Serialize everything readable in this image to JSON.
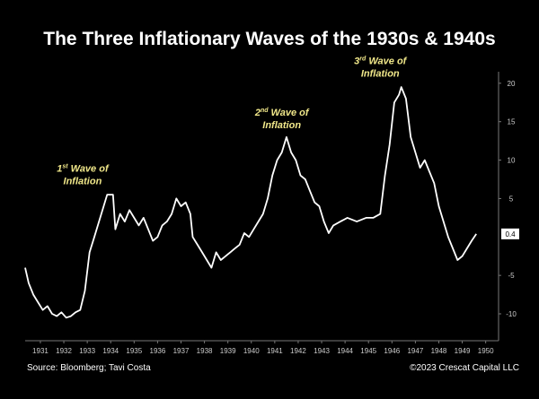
{
  "chart_data": {
    "type": "line",
    "title": "The Three Inflationary Waves of the 1930s & 1940s",
    "source": "Source: Bloomberg; Tavi Costa",
    "credit": "©2023 Crescat Capital LLC",
    "color": "#ffffff",
    "xlim": [
      1930.85,
      1951.05
    ],
    "ylim": [
      -13.5,
      21.5
    ],
    "yticks": [
      -10,
      -5,
      5,
      10,
      15,
      20
    ],
    "xticks": [
      {
        "value": 1931.5,
        "label": "1931"
      },
      {
        "value": 1932.5,
        "label": "1932"
      },
      {
        "value": 1933.5,
        "label": "1933"
      },
      {
        "value": 1934.5,
        "label": "1934"
      },
      {
        "value": 1935.5,
        "label": "1935"
      },
      {
        "value": 1936.5,
        "label": "1936"
      },
      {
        "value": 1937.5,
        "label": "1937"
      },
      {
        "value": 1938.5,
        "label": "1938"
      },
      {
        "value": 1939.5,
        "label": "1939"
      },
      {
        "value": 1940.5,
        "label": "1940"
      },
      {
        "value": 1941.5,
        "label": "1941"
      },
      {
        "value": 1942.5,
        "label": "1942"
      },
      {
        "value": 1943.5,
        "label": "1943"
      },
      {
        "value": 1944.5,
        "label": "1944"
      },
      {
        "value": 1945.5,
        "label": "1945"
      },
      {
        "value": 1946.5,
        "label": "1946"
      },
      {
        "value": 1947.5,
        "label": "1947"
      },
      {
        "value": 1948.5,
        "label": "1948"
      },
      {
        "value": 1949.5,
        "label": "1949"
      },
      {
        "value": 1950.5,
        "label": "1950"
      }
    ],
    "last_value": 0.4,
    "annotations": [
      {
        "num": "1",
        "sup": "st",
        "rest": " Wave of",
        "line2": "Inflation",
        "x": 1933.3,
        "y": 8.5
      },
      {
        "num": "2",
        "sup": "nd",
        "rest": " Wave of",
        "line2": "Inflation",
        "x": 1941.8,
        "y": 15.8
      },
      {
        "num": "3",
        "sup": "rd",
        "rest": " Wave of",
        "line2": "Inflation",
        "x": 1946.0,
        "y": 22.5
      }
    ],
    "x": [
      1930.85,
      1931.0,
      1931.2,
      1931.4,
      1931.6,
      1931.8,
      1932.0,
      1932.2,
      1932.4,
      1932.6,
      1932.8,
      1933.0,
      1933.2,
      1933.4,
      1933.6,
      1933.8,
      1934.0,
      1934.2,
      1934.35,
      1934.6,
      1934.7,
      1934.9,
      1935.1,
      1935.3,
      1935.5,
      1935.7,
      1935.9,
      1936.1,
      1936.3,
      1936.5,
      1936.7,
      1936.9,
      1937.1,
      1937.3,
      1937.5,
      1937.7,
      1937.9,
      1938.0,
      1938.2,
      1938.4,
      1938.6,
      1938.8,
      1939.0,
      1939.2,
      1939.4,
      1939.6,
      1939.8,
      1940.0,
      1940.2,
      1940.4,
      1940.6,
      1940.8,
      1941.0,
      1941.2,
      1941.4,
      1941.6,
      1941.8,
      1942.0,
      1942.2,
      1942.4,
      1942.6,
      1942.8,
      1943.0,
      1943.2,
      1943.4,
      1943.6,
      1943.8,
      1944.0,
      1944.3,
      1944.6,
      1945.0,
      1945.4,
      1945.7,
      1946.0,
      1946.2,
      1946.4,
      1946.6,
      1946.8,
      1946.9,
      1947.1,
      1947.3,
      1947.5,
      1947.7,
      1947.9,
      1948.1,
      1948.3,
      1948.5,
      1948.7,
      1948.9,
      1949.1,
      1949.3,
      1949.5,
      1949.7,
      1949.9,
      1950.1
    ],
    "values": [
      -4,
      -6,
      -7.5,
      -8.5,
      -9.5,
      -9,
      -10,
      -10.3,
      -9.8,
      -10.5,
      -10.3,
      -9.8,
      -9.5,
      -7,
      -2,
      0,
      2,
      4,
      5.5,
      5.5,
      1,
      3,
      2,
      3.5,
      2.5,
      1.5,
      2.5,
      1,
      -0.5,
      0,
      1.5,
      2,
      3,
      5,
      4,
      4.5,
      3,
      0,
      -1,
      -2,
      -3,
      -4,
      -2,
      -3,
      -2.5,
      -2,
      -1.5,
      -1,
      0.5,
      0,
      1,
      2,
      3,
      5,
      8,
      10,
      11,
      13,
      11,
      10,
      8,
      7.5,
      6,
      4.5,
      4,
      2,
      0.5,
      1.5,
      2,
      2.5,
      2,
      2.5,
      2.5,
      3,
      8,
      12,
      17.5,
      18.5,
      19.5,
      18,
      13,
      11,
      9,
      10,
      8.5,
      7,
      4,
      2,
      0,
      -1.5,
      -3,
      -2.5,
      -1.5,
      -0.5,
      0.4
    ]
  }
}
